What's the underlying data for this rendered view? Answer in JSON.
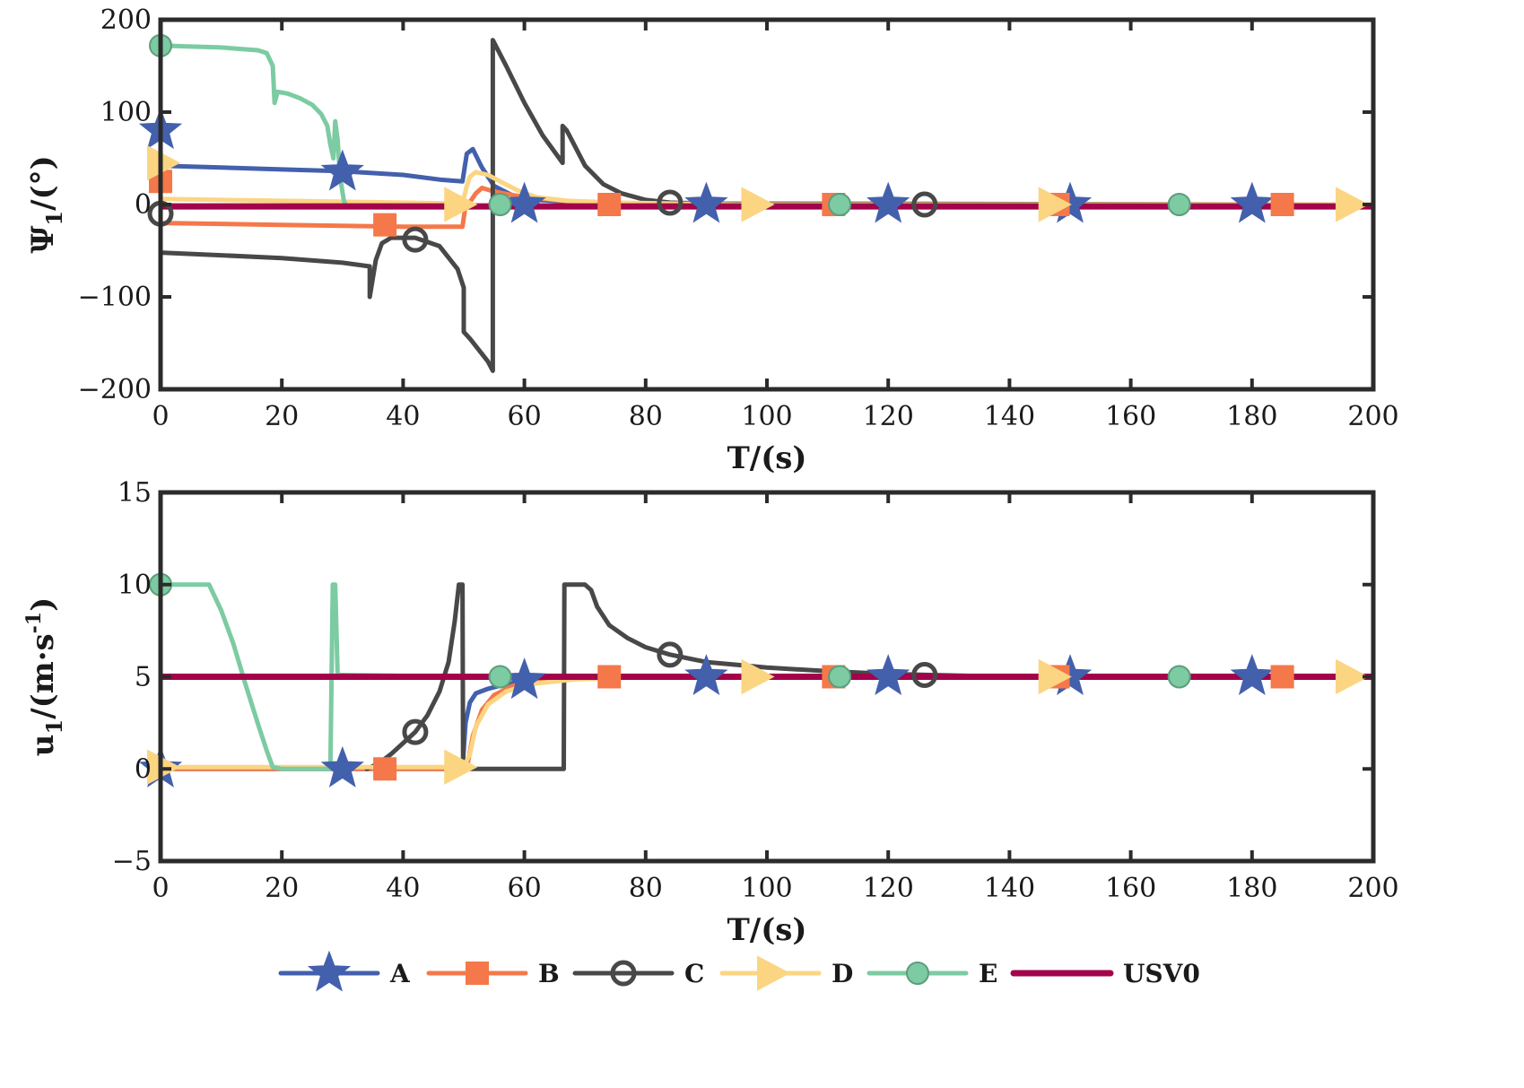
{
  "colors": {
    "A": "#4360ad",
    "B": "#f4784a",
    "C": "#484848",
    "D": "#fbd582",
    "E": "#7ccba2",
    "USV0": "#a2034b",
    "axis": "#2b2b2b"
  },
  "chart_data": [
    {
      "type": "line",
      "id": "top",
      "xlabel": "T/(s)",
      "ylabel": "Ψ",
      "ylabel_sub": "1",
      "ylabel_tail": "/(°)",
      "xlim": [
        0,
        200
      ],
      "ylim": [
        -200,
        200
      ],
      "xticks": [
        0,
        20,
        40,
        60,
        80,
        100,
        120,
        140,
        160,
        180,
        200
      ],
      "yticks": [
        -200,
        -100,
        0,
        100,
        200
      ],
      "xtick_labels": [
        "0",
        "20",
        "40",
        "60",
        "80",
        "100",
        "120",
        "140",
        "160",
        "180",
        "200"
      ],
      "ytick_labels": [
        "−200",
        "−100",
        "0",
        "100",
        "200"
      ],
      "series": [
        {
          "name": "A",
          "marker": "star",
          "points": [
            [
              0,
              80
            ],
            [
              0,
              42
            ],
            [
              10,
              40
            ],
            [
              20,
              38
            ],
            [
              30,
              36
            ],
            [
              40,
              32
            ],
            [
              46,
              27
            ],
            [
              49.8,
              25
            ],
            [
              50.5,
              55
            ],
            [
              51.5,
              60
            ],
            [
              53,
              40
            ],
            [
              55,
              20
            ],
            [
              58,
              10
            ],
            [
              62,
              5
            ],
            [
              70,
              2
            ],
            [
              80,
              1
            ],
            [
              90,
              0
            ],
            [
              200,
              0
            ]
          ],
          "markers": [
            [
              0,
              80
            ],
            [
              30,
              35
            ],
            [
              60,
              0
            ],
            [
              90,
              0
            ],
            [
              120,
              0
            ],
            [
              150,
              0
            ],
            [
              180,
              0
            ]
          ]
        },
        {
          "name": "B",
          "marker": "square",
          "points": [
            [
              0,
              25
            ],
            [
              0,
              -20
            ],
            [
              10,
              -21
            ],
            [
              20,
              -22
            ],
            [
              30,
              -23
            ],
            [
              40,
              -24
            ],
            [
              49.8,
              -24
            ],
            [
              50.2,
              -5
            ],
            [
              52,
              12
            ],
            [
              53,
              18
            ],
            [
              55,
              14
            ],
            [
              60,
              8
            ],
            [
              65,
              5
            ],
            [
              70,
              2
            ],
            [
              80,
              1
            ],
            [
              90,
              0
            ],
            [
              200,
              0
            ]
          ],
          "markers": [
            [
              0,
              25
            ],
            [
              37,
              -22
            ],
            [
              74,
              0
            ],
            [
              111,
              0
            ],
            [
              148,
              0
            ],
            [
              185,
              0
            ]
          ]
        },
        {
          "name": "C",
          "marker": "circle",
          "points": [
            [
              0,
              -10
            ],
            [
              0,
              -52
            ],
            [
              10,
              -55
            ],
            [
              20,
              -58
            ],
            [
              30,
              -63
            ],
            [
              34.5,
              -67
            ],
            [
              34.5,
              -100
            ],
            [
              35.5,
              -60
            ],
            [
              36.5,
              -42
            ],
            [
              38,
              -36
            ],
            [
              42,
              -36
            ],
            [
              46,
              -45
            ],
            [
              49,
              -70
            ],
            [
              50,
              -90
            ],
            [
              50,
              -138
            ],
            [
              51,
              -145
            ],
            [
              54,
              -170
            ],
            [
              54.8,
              -180
            ],
            [
              54.8,
              178
            ],
            [
              57,
              150
            ],
            [
              60,
              110
            ],
            [
              63,
              75
            ],
            [
              66.3,
              45
            ],
            [
              66.3,
              85
            ],
            [
              67,
              80
            ],
            [
              70,
              42
            ],
            [
              73,
              22
            ],
            [
              76,
              12
            ],
            [
              80,
              5
            ],
            [
              84,
              2
            ],
            [
              90,
              1
            ],
            [
              200,
              0
            ]
          ],
          "markers": [
            [
              0,
              -10
            ],
            [
              42,
              -38
            ],
            [
              84,
              2
            ],
            [
              126,
              0
            ]
          ]
        },
        {
          "name": "D",
          "marker": "triangle",
          "points": [
            [
              0,
              45
            ],
            [
              0,
              6
            ],
            [
              10,
              5
            ],
            [
              20,
              4
            ],
            [
              30,
              3
            ],
            [
              40,
              2
            ],
            [
              49.8,
              1
            ],
            [
              50.5,
              20
            ],
            [
              51,
              30
            ],
            [
              52,
              35
            ],
            [
              54,
              32
            ],
            [
              56,
              25
            ],
            [
              59,
              15
            ],
            [
              62,
              8
            ],
            [
              67,
              4
            ],
            [
              75,
              2
            ],
            [
              85,
              1
            ],
            [
              95,
              0
            ],
            [
              200,
              0
            ]
          ],
          "markers": [
            [
              0,
              45
            ],
            [
              49,
              0
            ],
            [
              98,
              0
            ],
            [
              147,
              0
            ],
            [
              196,
              0
            ]
          ]
        },
        {
          "name": "E",
          "marker": "circle",
          "points": [
            [
              0,
              172
            ],
            [
              5,
              171
            ],
            [
              10,
              170
            ],
            [
              14,
              168
            ],
            [
              16,
              167
            ],
            [
              17.5,
              164
            ],
            [
              18.5,
              150
            ],
            [
              18.8,
              110
            ],
            [
              19.3,
              122
            ],
            [
              21,
              120
            ],
            [
              23,
              115
            ],
            [
              25,
              108
            ],
            [
              26.5,
              98
            ],
            [
              27.5,
              85
            ],
            [
              28,
              65
            ],
            [
              28.5,
              50
            ],
            [
              28.8,
              90
            ],
            [
              29.2,
              70
            ],
            [
              29.6,
              30
            ],
            [
              30.2,
              5
            ],
            [
              30.6,
              -2
            ]
          ],
          "markers": [
            [
              0,
              172
            ],
            [
              56,
              0
            ],
            [
              112,
              0
            ],
            [
              168,
              0
            ]
          ]
        },
        {
          "name": "USV0",
          "marker": "none",
          "points": [
            [
              0,
              -2
            ],
            [
              200,
              -2
            ]
          ],
          "markers": []
        }
      ]
    },
    {
      "type": "line",
      "id": "bottom",
      "xlabel": "T/(s)",
      "ylabel": "u",
      "ylabel_sub": "1",
      "ylabel_tail": "/(m·s",
      "ylabel_sup": "-1",
      "ylabel_end": ")",
      "xlim": [
        0,
        200
      ],
      "ylim": [
        -5,
        15
      ],
      "xticks": [
        0,
        20,
        40,
        60,
        80,
        100,
        120,
        140,
        160,
        180,
        200
      ],
      "yticks": [
        -5,
        0,
        5,
        10,
        15
      ],
      "xtick_labels": [
        "0",
        "20",
        "40",
        "60",
        "80",
        "100",
        "120",
        "140",
        "160",
        "180",
        "200"
      ],
      "ytick_labels": [
        "−5",
        "0",
        "5",
        "10",
        "15"
      ],
      "series": [
        {
          "name": "A",
          "marker": "star",
          "points": [
            [
              0,
              0
            ],
            [
              49.8,
              0
            ],
            [
              50.3,
              2.5
            ],
            [
              51,
              3.6
            ],
            [
              52,
              4.1
            ],
            [
              54,
              4.35
            ],
            [
              57,
              4.6
            ],
            [
              60,
              4.75
            ],
            [
              65,
              4.85
            ],
            [
              75,
              4.95
            ],
            [
              90,
              5
            ],
            [
              200,
              5
            ]
          ],
          "markers": [
            [
              0,
              0
            ],
            [
              30,
              0
            ],
            [
              60,
              4.8
            ],
            [
              90,
              5
            ],
            [
              120,
              5
            ],
            [
              150,
              5
            ],
            [
              180,
              5
            ]
          ]
        },
        {
          "name": "B",
          "marker": "square",
          "points": [
            [
              0,
              0
            ],
            [
              50.5,
              0
            ],
            [
              51.5,
              1.8
            ],
            [
              53,
              3.2
            ],
            [
              55,
              4
            ],
            [
              58,
              4.5
            ],
            [
              62,
              4.75
            ],
            [
              70,
              4.9
            ],
            [
              80,
              5
            ],
            [
              200,
              5
            ]
          ],
          "markers": [
            [
              37,
              0
            ],
            [
              74,
              5
            ],
            [
              111,
              5
            ],
            [
              148,
              5
            ],
            [
              185,
              5
            ]
          ]
        },
        {
          "name": "C",
          "marker": "circle",
          "points": [
            [
              34,
              0
            ],
            [
              36,
              0.3
            ],
            [
              38,
              0.8
            ],
            [
              40,
              1.4
            ],
            [
              42,
              2
            ],
            [
              44,
              2.9
            ],
            [
              46,
              4.2
            ],
            [
              47.5,
              5.8
            ],
            [
              48.5,
              8
            ],
            [
              49.2,
              10
            ],
            [
              49.8,
              10
            ],
            [
              49.9,
              0
            ],
            [
              50,
              0
            ],
            [
              66.5,
              0
            ],
            [
              66.6,
              10
            ],
            [
              70,
              10
            ],
            [
              71,
              9.7
            ],
            [
              72,
              8.8
            ],
            [
              74,
              7.8
            ],
            [
              77,
              7.1
            ],
            [
              80,
              6.6
            ],
            [
              84,
              6.2
            ],
            [
              90,
              5.8
            ],
            [
              100,
              5.5
            ],
            [
              110,
              5.3
            ],
            [
              120,
              5.15
            ],
            [
              126,
              5.1
            ],
            [
              140,
              5
            ],
            [
              200,
              5
            ]
          ],
          "markers": [
            [
              42,
              2
            ],
            [
              84,
              6.2
            ],
            [
              126,
              5.1
            ]
          ]
        },
        {
          "name": "D",
          "marker": "triangle",
          "points": [
            [
              0,
              0.1
            ],
            [
              50,
              0.1
            ],
            [
              51,
              0.8
            ],
            [
              52,
              2.3
            ],
            [
              54,
              3.5
            ],
            [
              57,
              4.2
            ],
            [
              61,
              4.6
            ],
            [
              68,
              4.85
            ],
            [
              80,
              5
            ],
            [
              200,
              5
            ]
          ],
          "markers": [
            [
              0,
              0.1
            ],
            [
              49,
              0.1
            ],
            [
              98,
              5
            ],
            [
              147,
              5
            ],
            [
              196,
              5
            ]
          ]
        },
        {
          "name": "E",
          "marker": "circle",
          "points": [
            [
              0,
              10
            ],
            [
              8,
              10
            ],
            [
              10,
              8.6
            ],
            [
              12,
              6.8
            ],
            [
              14,
              4.6
            ],
            [
              16,
              2.5
            ],
            [
              17.5,
              1
            ],
            [
              18.5,
              0.1
            ],
            [
              20,
              0
            ],
            [
              28,
              0
            ],
            [
              28.4,
              10
            ],
            [
              28.8,
              10
            ],
            [
              29.2,
              5.1
            ],
            [
              40,
              5.05
            ],
            [
              56,
              5
            ],
            [
              200,
              5
            ]
          ],
          "markers": [
            [
              0,
              10
            ],
            [
              56,
              5
            ],
            [
              112,
              5
            ],
            [
              168,
              5
            ]
          ]
        },
        {
          "name": "USV0",
          "marker": "none",
          "points": [
            [
              0,
              5
            ],
            [
              200,
              5
            ]
          ],
          "markers": []
        }
      ]
    }
  ],
  "legend": {
    "placement": "bottom-center",
    "entries": [
      {
        "name": "A",
        "marker": "star",
        "label": "A"
      },
      {
        "name": "B",
        "marker": "square",
        "label": "B"
      },
      {
        "name": "C",
        "marker": "circle",
        "label": "C"
      },
      {
        "name": "D",
        "marker": "triangle",
        "label": "D"
      },
      {
        "name": "E",
        "marker": "circle",
        "label": "E"
      },
      {
        "name": "USV0",
        "marker": "none",
        "label": "USV0"
      }
    ]
  }
}
